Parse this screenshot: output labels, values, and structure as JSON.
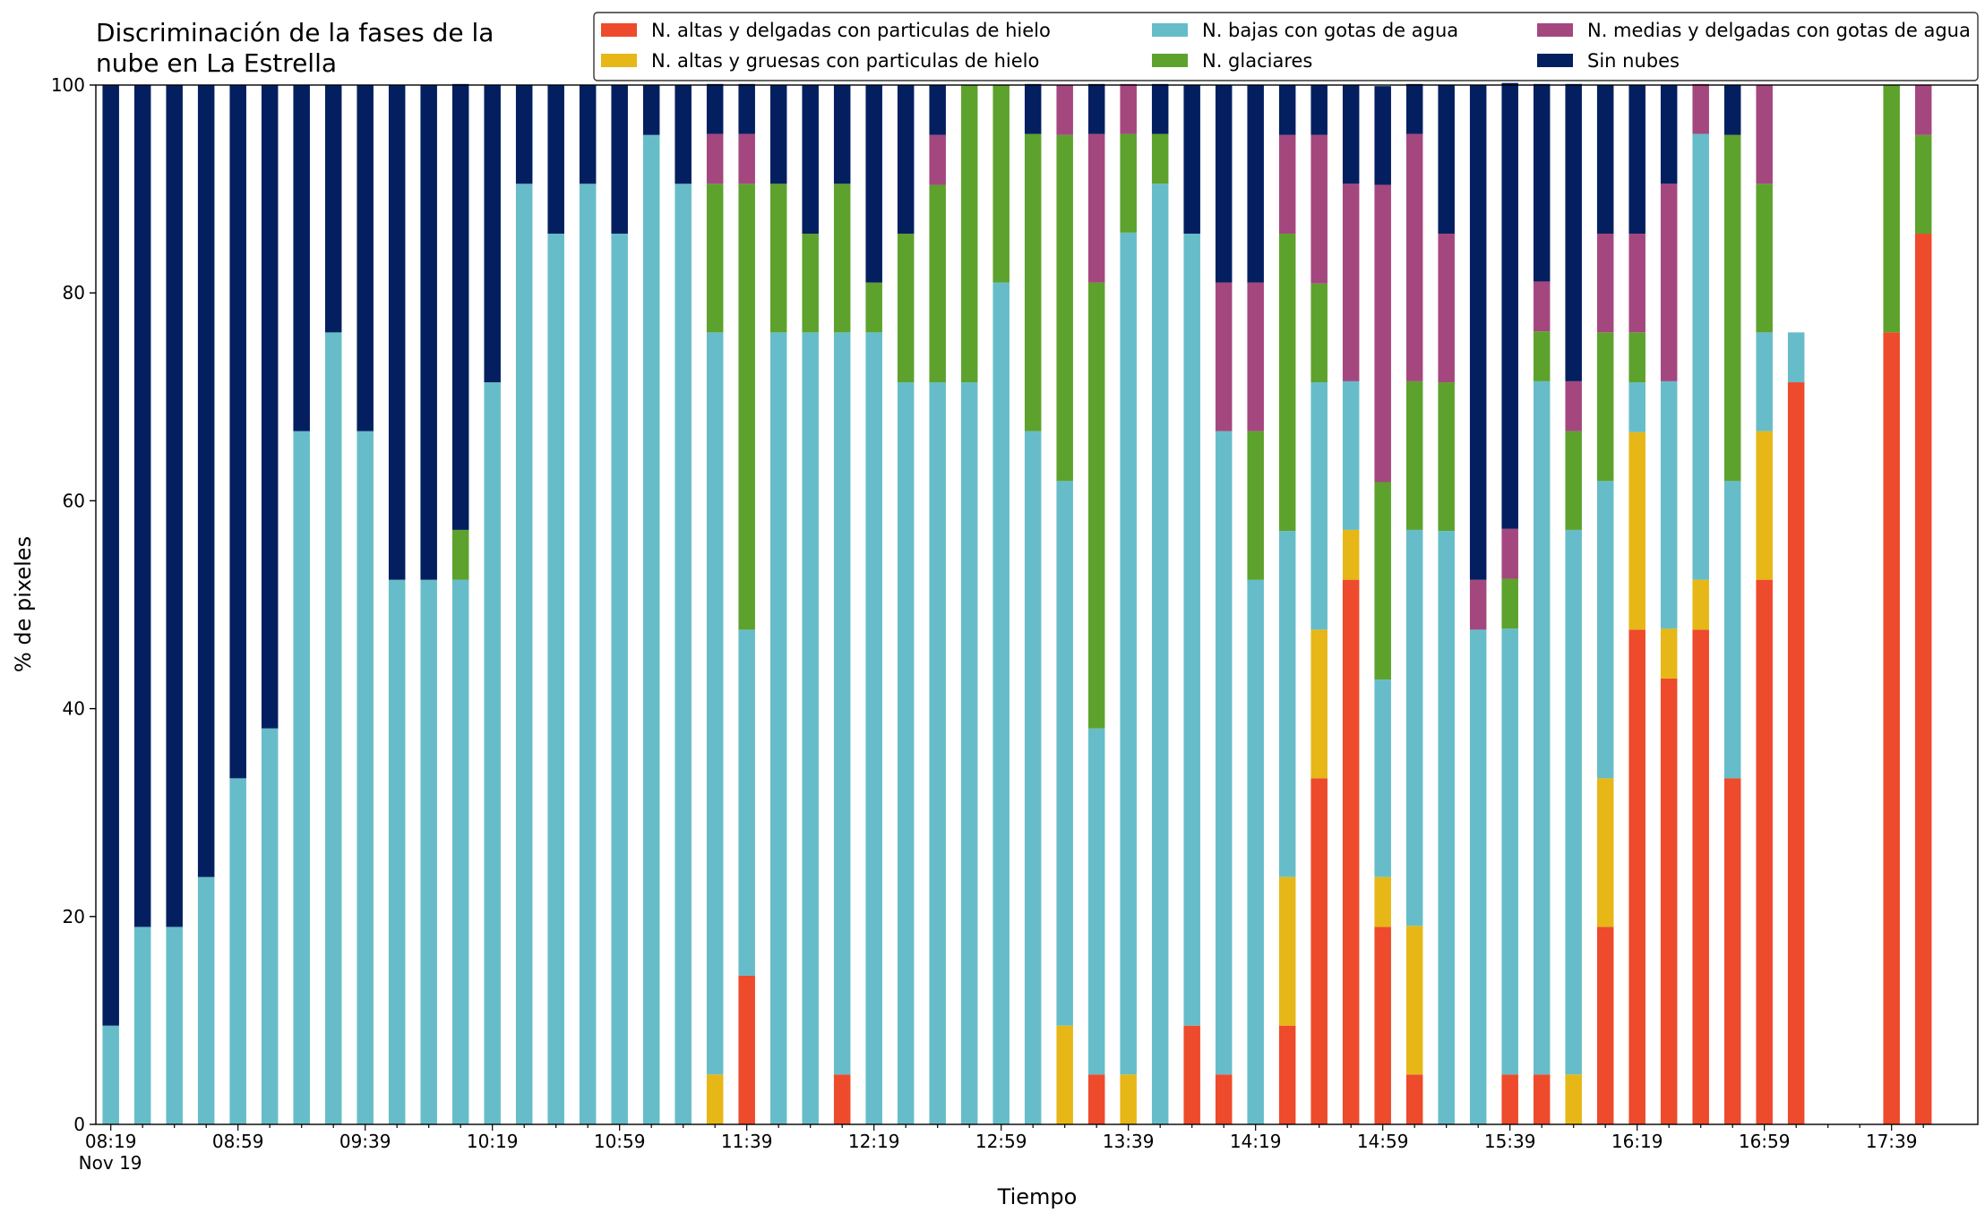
{
  "chart_data": {
    "type": "stacked_bar",
    "title": "Discriminación de la fases de la\nnube en La Estrella",
    "xlabel": "Tiempo",
    "ylabel": "% de pixeles",
    "x_date_label": "Nov 19",
    "categories": [
      "08:19",
      null,
      null,
      null,
      "08:59",
      null,
      null,
      null,
      "09:39",
      null,
      null,
      null,
      "10:19",
      null,
      null,
      null,
      "10:59",
      null,
      null,
      null,
      "11:39",
      null,
      null,
      null,
      "12:19",
      null,
      null,
      null,
      "12:59",
      null,
      null,
      null,
      "13:39",
      null,
      null,
      null,
      "14:19",
      null,
      null,
      null,
      "14:59",
      null,
      null,
      null,
      "15:39",
      null,
      null,
      null,
      "16:19",
      null,
      null,
      null,
      "16:59",
      null,
      null,
      null,
      "17:39",
      null
    ],
    "ylim": [
      0,
      100
    ],
    "yticks": [
      0,
      20,
      40,
      60,
      80,
      100
    ],
    "legend": "upper right",
    "series": [
      {
        "name": "N. altas y delgadas con particulas de hielo",
        "color": "#ee4a2c",
        "values": [
          0,
          0,
          0,
          0,
          0,
          0,
          0,
          0,
          0,
          0,
          0,
          0,
          0,
          0,
          0,
          0,
          0,
          0,
          0,
          0,
          14.3,
          0,
          0,
          4.8,
          0,
          0,
          0,
          0,
          0,
          0,
          0,
          4.8,
          0,
          0,
          9.5,
          4.8,
          0,
          9.5,
          33.3,
          52.4,
          19,
          4.8,
          0,
          0,
          4.8,
          4.8,
          0,
          19,
          47.6,
          42.9,
          47.6,
          33.3,
          52.4,
          71.4,
          null,
          null,
          76.2,
          85.7
        ]
      },
      {
        "name": "N. altas y gruesas con particulas de hielo",
        "color": "#e6b717",
        "values": [
          0,
          0,
          0,
          0,
          0,
          0,
          0,
          0,
          0,
          0,
          0,
          0,
          0,
          0,
          0,
          0,
          0,
          0,
          0,
          4.8,
          0,
          0,
          0,
          0,
          0,
          0,
          0,
          0,
          0,
          0,
          9.5,
          0,
          4.8,
          0,
          0,
          0,
          0,
          14.3,
          14.3,
          4.8,
          4.8,
          14.3,
          0,
          0,
          0,
          0,
          4.8,
          14.3,
          19,
          4.8,
          4.8,
          0,
          14.3,
          0,
          null,
          null,
          0,
          0
        ]
      },
      {
        "name": "N. bajas con gotas de agua",
        "color": "#66bdc9",
        "values": [
          9.5,
          19,
          19,
          23.8,
          33.3,
          38.1,
          66.7,
          76.2,
          66.7,
          52.4,
          52.4,
          52.4,
          71.4,
          90.5,
          85.7,
          90.5,
          85.7,
          95.2,
          90.5,
          71.4,
          33.3,
          76.2,
          76.2,
          71.4,
          76.2,
          71.4,
          71.4,
          71.4,
          81,
          66.7,
          52.4,
          33.3,
          81,
          90.5,
          76.2,
          61.9,
          52.4,
          33.3,
          23.8,
          14.3,
          19,
          38.1,
          57.1,
          47.6,
          42.9,
          66.7,
          52.4,
          28.6,
          4.8,
          23.8,
          42.9,
          28.6,
          9.5,
          4.8,
          null,
          null,
          0,
          0
        ]
      },
      {
        "name": "N. glaciares",
        "color": "#5da22d",
        "values": [
          0,
          0,
          0,
          0,
          0,
          0,
          0,
          0,
          0,
          0,
          0,
          4.8,
          0,
          0,
          0,
          0,
          0,
          0,
          0,
          14.3,
          42.9,
          14.3,
          9.5,
          14.3,
          4.8,
          14.3,
          19,
          28.6,
          19,
          28.6,
          33.3,
          42.9,
          9.5,
          4.8,
          0,
          0,
          14.3,
          28.6,
          9.5,
          0,
          19,
          14.3,
          14.3,
          0,
          4.8,
          4.8,
          9.5,
          14.3,
          4.8,
          0,
          0,
          33.3,
          14.3,
          0,
          null,
          null,
          23.8,
          9.5
        ]
      },
      {
        "name": "N. medias y delgadas con gotas de agua",
        "color": "#a5477f",
        "values": [
          0,
          0,
          0,
          0,
          0,
          0,
          0,
          0,
          0,
          0,
          0,
          0,
          0,
          0,
          0,
          0,
          0,
          0,
          0,
          4.8,
          4.8,
          0,
          0,
          0,
          0,
          0,
          4.8,
          0,
          0,
          0,
          4.8,
          14.3,
          4.8,
          0,
          0,
          14.3,
          14.3,
          9.5,
          14.3,
          19,
          28.6,
          23.8,
          14.3,
          4.8,
          4.8,
          4.8,
          4.8,
          9.5,
          9.5,
          19,
          4.8,
          0,
          9.5,
          0,
          null,
          null,
          0,
          4.8
        ]
      },
      {
        "name": "Sin nubes",
        "color": "#041f60",
        "values": [
          90.5,
          81,
          81,
          76.2,
          66.7,
          61.9,
          33.3,
          23.8,
          33.3,
          47.6,
          47.6,
          42.9,
          28.6,
          9.5,
          14.3,
          9.5,
          14.3,
          4.8,
          9.5,
          4.8,
          4.8,
          9.5,
          14.3,
          9.5,
          19,
          14.3,
          4.8,
          0,
          0,
          4.8,
          0,
          4.8,
          0,
          4.8,
          14.3,
          19,
          19,
          4.8,
          4.8,
          9.5,
          9.5,
          4.8,
          14.3,
          47.6,
          42.9,
          19,
          28.6,
          14.3,
          14.3,
          9.5,
          0,
          4.8,
          0,
          0,
          null,
          null,
          0,
          0
        ]
      }
    ]
  }
}
